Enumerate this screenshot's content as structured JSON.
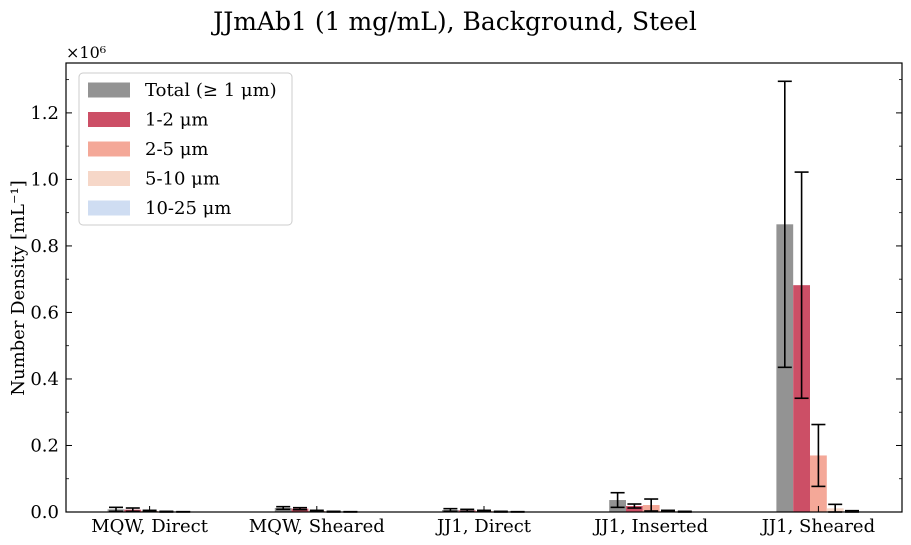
{
  "chart_data": {
    "type": "bar",
    "title": "JJmAb1 (1 mg/mL), Background, Steel",
    "ylabel": "Number Density [mL⁻¹]",
    "xlabel": "",
    "y_multiplier_label": "×10⁶",
    "ylim": [
      0,
      1.35
    ],
    "yticks": [
      0.0,
      0.2,
      0.4,
      0.6,
      0.8,
      1.0,
      1.2
    ],
    "ytick_labels": [
      "0.0",
      "0.2",
      "0.4",
      "0.6",
      "0.8",
      "1.0",
      "1.2"
    ],
    "categories": [
      "MQW, Direct",
      "MQW, Sheared",
      "JJ1, Direct",
      "JJ1, Inserted",
      "JJ1, Sheared"
    ],
    "series": [
      {
        "name": "Total (≥ 1 μm)",
        "color": "#939393",
        "values": [
          0.008,
          0.012,
          0.006,
          0.036,
          0.865
        ],
        "errors": [
          0.006,
          0.004,
          0.004,
          0.022,
          0.43
        ]
      },
      {
        "name": "1-2 μm",
        "color": "#cc4f66",
        "values": [
          0.007,
          0.01,
          0.005,
          0.018,
          0.682
        ],
        "errors": [
          0.005,
          0.003,
          0.003,
          0.006,
          0.34
        ]
      },
      {
        "name": "2-5 μm",
        "color": "#f4a898",
        "values": [
          0.003,
          0.003,
          0.003,
          0.021,
          0.17
        ],
        "errors": [
          0.002,
          0.002,
          0.002,
          0.018,
          0.093
        ]
      },
      {
        "name": "5-10 μm",
        "color": "#f6d7c8",
        "values": [
          0.001,
          0.001,
          0.001,
          0.003,
          0.011
        ],
        "errors": [
          0.001,
          0.001,
          0.001,
          0.002,
          0.012
        ]
      },
      {
        "name": "10-25 μm",
        "color": "#cfddf2",
        "values": [
          0.0005,
          0.0005,
          0.0005,
          0.001,
          0.002
        ],
        "errors": [
          0.0005,
          0.0005,
          0.0005,
          0.001,
          0.002
        ]
      }
    ],
    "legend_position": "upper-left",
    "grid": false
  }
}
